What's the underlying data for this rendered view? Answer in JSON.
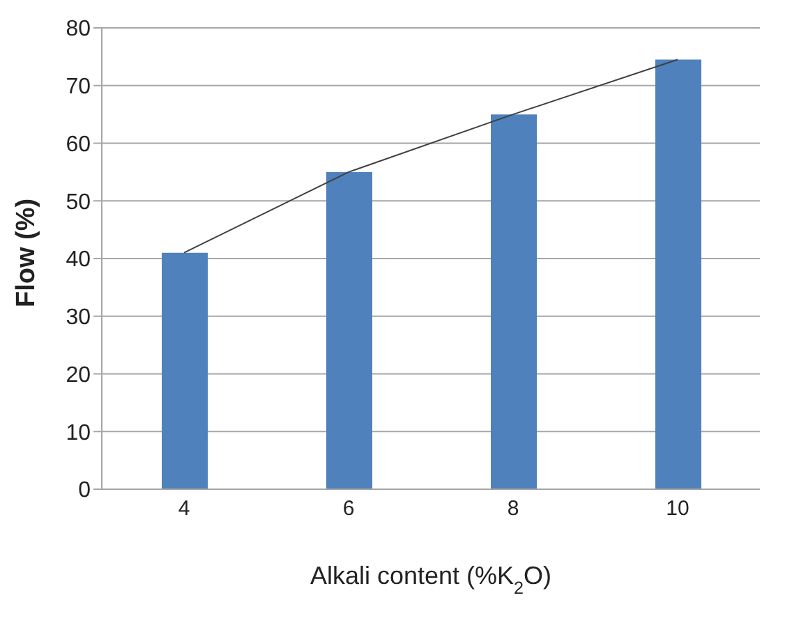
{
  "chart_data": {
    "type": "bar",
    "xlabel": "Alkali content (%K$_{2}$O)",
    "ylabel": "Flow (%)",
    "categories": [
      "4",
      "6",
      "8",
      "10"
    ],
    "series": [
      {
        "color": "#4f81bd",
        "values": [
          41,
          55,
          65,
          74.5
        ]
      },
      {
        "type": "line",
        "color": "#404040",
        "values": [
          41,
          55,
          65,
          74.5
        ]
      }
    ],
    "ylim": [
      0,
      80
    ],
    "yticks": [
      0,
      10,
      20,
      30,
      40,
      50,
      60,
      70,
      80
    ],
    "grid": "y",
    "marker": "none"
  }
}
